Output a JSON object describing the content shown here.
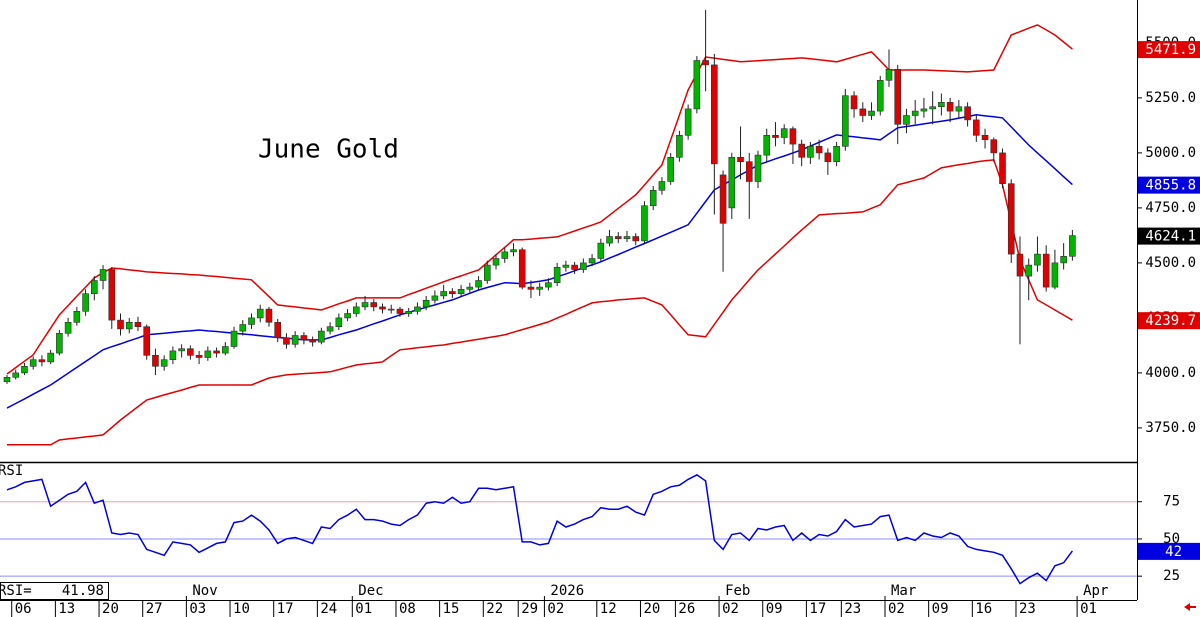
{
  "chart_data": {
    "type": "candlestick",
    "title": "June Gold",
    "up_color": "#00b400",
    "down_color": "#e00000",
    "wick_color": "#202020",
    "xlim": [
      -0.8,
      129.4
    ],
    "xticks": [
      {
        "value": 1,
        "label": "06"
      },
      {
        "value": 6,
        "label": "13"
      },
      {
        "value": 11,
        "label": "20"
      },
      {
        "value": 16,
        "label": "27"
      },
      {
        "value": 21,
        "label": "03"
      },
      {
        "value": 26,
        "label": "10"
      },
      {
        "value": 31,
        "label": "17"
      },
      {
        "value": 36,
        "label": "24"
      },
      {
        "value": 40,
        "label": "01"
      },
      {
        "value": 45,
        "label": "08"
      },
      {
        "value": 50,
        "label": "15"
      },
      {
        "value": 55,
        "label": "22"
      },
      {
        "value": 59,
        "label": "29"
      },
      {
        "value": 62,
        "label": "02"
      },
      {
        "value": 68,
        "label": "12"
      },
      {
        "value": 73,
        "label": "20"
      },
      {
        "value": 77,
        "label": "26"
      },
      {
        "value": 82,
        "label": "02"
      },
      {
        "value": 87,
        "label": "09"
      },
      {
        "value": 92,
        "label": "17"
      },
      {
        "value": 96,
        "label": "23"
      },
      {
        "value": 101,
        "label": "02"
      },
      {
        "value": 106,
        "label": "09"
      },
      {
        "value": 111,
        "label": "16"
      },
      {
        "value": 116,
        "label": "23"
      },
      {
        "value": 123,
        "label": "01"
      }
    ],
    "month_ticks": [
      {
        "value": 21,
        "label": "Nov"
      },
      {
        "value": 40,
        "label": "Dec"
      },
      {
        "value": 62,
        "label": "2026"
      },
      {
        "value": 82,
        "label": "Feb"
      },
      {
        "value": 101,
        "label": "Mar"
      },
      {
        "value": 123,
        "label": "Apr"
      }
    ],
    "ylim": [
      3595,
      5695
    ],
    "yticks": [
      {
        "value": 3750,
        "label": "3750.0"
      },
      {
        "value": 4000,
        "label": "4000.0"
      },
      {
        "value": 4250,
        "label": "4250.0"
      },
      {
        "value": 4500,
        "label": "4500.0"
      },
      {
        "value": 4750,
        "label": "4750.0"
      },
      {
        "value": 5000,
        "label": "5000.0"
      },
      {
        "value": 5250,
        "label": "5250.0"
      },
      {
        "value": 5500,
        "label": "5500.0"
      }
    ],
    "close_label_color": "#000000",
    "ohlc": [
      [
        3960,
        3990,
        3950,
        3980
      ],
      [
        3980,
        4015,
        3970,
        4000
      ],
      [
        4000,
        4045,
        3990,
        4030
      ],
      [
        4030,
        4075,
        4015,
        4060
      ],
      [
        4060,
        4080,
        4030,
        4050
      ],
      [
        4050,
        4105,
        4040,
        4090
      ],
      [
        4090,
        4195,
        4080,
        4180
      ],
      [
        4180,
        4250,
        4165,
        4230
      ],
      [
        4230,
        4300,
        4215,
        4280
      ],
      [
        4280,
        4380,
        4260,
        4360
      ],
      [
        4360,
        4440,
        4330,
        4420
      ],
      [
        4420,
        4490,
        4380,
        4470
      ],
      [
        4470,
        4480,
        4200,
        4240
      ],
      [
        4240,
        4270,
        4170,
        4200
      ],
      [
        4200,
        4250,
        4180,
        4230
      ],
      [
        4230,
        4255,
        4190,
        4210
      ],
      [
        4210,
        4220,
        4060,
        4080
      ],
      [
        4080,
        4110,
        3990,
        4030
      ],
      [
        4030,
        4080,
        4010,
        4060
      ],
      [
        4060,
        4120,
        4040,
        4100
      ],
      [
        4100,
        4130,
        4070,
        4110
      ],
      [
        4110,
        4125,
        4060,
        4080
      ],
      [
        4080,
        4100,
        4040,
        4070
      ],
      [
        4070,
        4120,
        4055,
        4100
      ],
      [
        4100,
        4115,
        4070,
        4090
      ],
      [
        4090,
        4140,
        4080,
        4120
      ],
      [
        4120,
        4210,
        4110,
        4190
      ],
      [
        4190,
        4240,
        4170,
        4220
      ],
      [
        4220,
        4270,
        4200,
        4250
      ],
      [
        4250,
        4310,
        4230,
        4290
      ],
      [
        4290,
        4300,
        4210,
        4230
      ],
      [
        4230,
        4245,
        4140,
        4160
      ],
      [
        4160,
        4180,
        4110,
        4130
      ],
      [
        4130,
        4190,
        4115,
        4170
      ],
      [
        4170,
        4185,
        4130,
        4150
      ],
      [
        4150,
        4165,
        4120,
        4140
      ],
      [
        4140,
        4205,
        4130,
        4190
      ],
      [
        4190,
        4230,
        4175,
        4210
      ],
      [
        4210,
        4270,
        4195,
        4250
      ],
      [
        4250,
        4290,
        4235,
        4270
      ],
      [
        4270,
        4320,
        4255,
        4300
      ],
      [
        4300,
        4350,
        4285,
        4320
      ],
      [
        4320,
        4335,
        4280,
        4300
      ],
      [
        4300,
        4315,
        4270,
        4290
      ],
      [
        4290,
        4310,
        4270,
        4290
      ],
      [
        4290,
        4300,
        4255,
        4270
      ],
      [
        4270,
        4295,
        4255,
        4280
      ],
      [
        4280,
        4320,
        4265,
        4300
      ],
      [
        4300,
        4350,
        4285,
        4330
      ],
      [
        4330,
        4375,
        4315,
        4350
      ],
      [
        4350,
        4400,
        4335,
        4370
      ],
      [
        4370,
        4385,
        4340,
        4360
      ],
      [
        4360,
        4400,
        4345,
        4380
      ],
      [
        4380,
        4410,
        4360,
        4390
      ],
      [
        4390,
        4440,
        4375,
        4420
      ],
      [
        4420,
        4510,
        4405,
        4490
      ],
      [
        4490,
        4540,
        4470,
        4520
      ],
      [
        4520,
        4570,
        4500,
        4550
      ],
      [
        4550,
        4590,
        4530,
        4560
      ],
      [
        4560,
        4570,
        4380,
        4390
      ],
      [
        4390,
        4420,
        4340,
        4380
      ],
      [
        4380,
        4410,
        4350,
        4390
      ],
      [
        4390,
        4430,
        4375,
        4410
      ],
      [
        4410,
        4500,
        4395,
        4480
      ],
      [
        4480,
        4510,
        4460,
        4490
      ],
      [
        4490,
        4505,
        4450,
        4470
      ],
      [
        4470,
        4520,
        4455,
        4500
      ],
      [
        4500,
        4540,
        4485,
        4520
      ],
      [
        4520,
        4610,
        4505,
        4590
      ],
      [
        4590,
        4650,
        4575,
        4620
      ],
      [
        4620,
        4640,
        4590,
        4610
      ],
      [
        4610,
        4645,
        4595,
        4620
      ],
      [
        4620,
        4635,
        4580,
        4600
      ],
      [
        4600,
        4780,
        4590,
        4760
      ],
      [
        4760,
        4850,
        4740,
        4830
      ],
      [
        4830,
        4890,
        4810,
        4870
      ],
      [
        4870,
        5000,
        4855,
        4980
      ],
      [
        4980,
        5100,
        4960,
        5080
      ],
      [
        5080,
        5220,
        5060,
        5200
      ],
      [
        5200,
        5440,
        5180,
        5420
      ],
      [
        5420,
        5650,
        5280,
        5400
      ],
      [
        5400,
        5450,
        4720,
        4950
      ],
      [
        4900,
        4920,
        4460,
        4680
      ],
      [
        4750,
        5000,
        4700,
        4980
      ],
      [
        4980,
        5120,
        4880,
        4960
      ],
      [
        4960,
        5000,
        4700,
        4870
      ],
      [
        4870,
        5010,
        4840,
        4990
      ],
      [
        4990,
        5110,
        4960,
        5080
      ],
      [
        5080,
        5140,
        5030,
        5070
      ],
      [
        5070,
        5130,
        5040,
        5110
      ],
      [
        5110,
        5120,
        4950,
        5040
      ],
      [
        5040,
        5060,
        4940,
        4980
      ],
      [
        4980,
        5050,
        4950,
        5030
      ],
      [
        5030,
        5060,
        4970,
        5000
      ],
      [
        5000,
        5020,
        4900,
        4960
      ],
      [
        4960,
        5050,
        4940,
        5030
      ],
      [
        5030,
        5290,
        5010,
        5260
      ],
      [
        5260,
        5280,
        5160,
        5200
      ],
      [
        5200,
        5230,
        5140,
        5170
      ],
      [
        5170,
        5230,
        5150,
        5190
      ],
      [
        5190,
        5350,
        5170,
        5330
      ],
      [
        5330,
        5470,
        5300,
        5380
      ],
      [
        5380,
        5400,
        5040,
        5130
      ],
      [
        5130,
        5200,
        5090,
        5170
      ],
      [
        5170,
        5240,
        5130,
        5190
      ],
      [
        5190,
        5250,
        5160,
        5200
      ],
      [
        5200,
        5280,
        5130,
        5210
      ],
      [
        5210,
        5270,
        5170,
        5230
      ],
      [
        5230,
        5250,
        5140,
        5190
      ],
      [
        5190,
        5240,
        5160,
        5210
      ],
      [
        5210,
        5230,
        5120,
        5150
      ],
      [
        5150,
        5170,
        5050,
        5080
      ],
      [
        5080,
        5110,
        5020,
        5060
      ],
      [
        5060,
        5070,
        4960,
        5000
      ],
      [
        5000,
        5020,
        4840,
        4860
      ],
      [
        4860,
        4880,
        4500,
        4540
      ],
      [
        4540,
        4620,
        4130,
        4440
      ],
      [
        4440,
        4520,
        4330,
        4490
      ],
      [
        4490,
        4620,
        4460,
        4540
      ],
      [
        4540,
        4580,
        4370,
        4390
      ],
      [
        4390,
        4560,
        4380,
        4500
      ],
      [
        4500,
        4590,
        4470,
        4530
      ],
      [
        4530,
        4650,
        4510,
        4624.1
      ]
    ],
    "bands": [
      {
        "color": "#e00000",
        "values": [
          3995,
          4024,
          4053,
          4082,
          4143,
          4203,
          4264,
          4306,
          4348,
          4390,
          4432,
          4455,
          4477,
          4473,
          4468,
          4464,
          4459,
          4457,
          4454,
          4452,
          4450,
          4447,
          4445,
          4441,
          4438,
          4434,
          4430,
          4427,
          4423,
          4385,
          4347,
          4309,
          4304,
          4300,
          4295,
          4291,
          4286,
          4300,
          4314,
          4327,
          4341,
          4341,
          4341,
          4341,
          4341,
          4341,
          4356,
          4370,
          4385,
          4399,
          4414,
          4428,
          4441,
          4455,
          4468,
          4502,
          4537,
          4571,
          4605,
          4605,
          4608,
          4612,
          4615,
          4618,
          4632,
          4645,
          4659,
          4672,
          4686,
          4717,
          4748,
          4778,
          4809,
          4854,
          4900,
          4945,
          5059,
          5172,
          5286,
          5361,
          5436,
          5431,
          5425,
          5420,
          5414,
          5417,
          5419,
          5422,
          5424,
          5427,
          5429,
          5432,
          5428,
          5423,
          5419,
          5414,
          5425,
          5437,
          5448,
          5459,
          5418,
          5377,
          5377,
          5377,
          5377,
          5377,
          5375,
          5373,
          5372,
          5370,
          5368,
          5371,
          5374,
          5377,
          5457,
          5536,
          5551,
          5567,
          5582,
          5559,
          5536,
          5504,
          5471.9
        ]
      },
      {
        "color": "#0000e0",
        "values": [
          3840,
          3861,
          3882,
          3903,
          3924,
          3945,
          3972,
          3998,
          4025,
          4052,
          4078,
          4105,
          4119,
          4132,
          4146,
          4159,
          4173,
          4177,
          4180,
          4184,
          4188,
          4191,
          4195,
          4191,
          4188,
          4184,
          4180,
          4177,
          4173,
          4169,
          4165,
          4161,
          4158,
          4154,
          4150,
          4150,
          4150,
          4161,
          4173,
          4184,
          4195,
          4209,
          4223,
          4236,
          4250,
          4264,
          4275,
          4287,
          4298,
          4309,
          4321,
          4332,
          4347,
          4362,
          4377,
          4388,
          4399,
          4410,
          4408,
          4405,
          4411,
          4417,
          4423,
          4437,
          4450,
          4464,
          4478,
          4491,
          4505,
          4522,
          4538,
          4555,
          4572,
          4588,
          4605,
          4622,
          4639,
          4656,
          4673,
          4726,
          4779,
          4832,
          4855,
          4877,
          4900,
          4922,
          4945,
          4959,
          4973,
          4986,
          5000,
          5014,
          5031,
          5048,
          5065,
          5082,
          5077,
          5073,
          5068,
          5064,
          5059,
          5087,
          5114,
          5120,
          5126,
          5132,
          5138,
          5144,
          5150,
          5158,
          5165,
          5173,
          5168,
          5164,
          5159,
          5118,
          5077,
          5036,
          5000,
          4964,
          4928,
          4892,
          4855.8
        ]
      },
      {
        "color": "#e00000",
        "values": [
          3673,
          3673,
          3673,
          3673,
          3673,
          3673,
          3695,
          3700,
          3704,
          3709,
          3713,
          3718,
          3752,
          3786,
          3816,
          3847,
          3877,
          3888,
          3900,
          3911,
          3922,
          3934,
          3945,
          3945,
          3945,
          3945,
          3945,
          3945,
          3945,
          3961,
          3977,
          3984,
          3991,
          3994,
          3997,
          3999,
          4002,
          4005,
          4015,
          4026,
          4036,
          4041,
          4045,
          4050,
          4078,
          4105,
          4109,
          4114,
          4118,
          4123,
          4127,
          4134,
          4140,
          4147,
          4153,
          4160,
          4166,
          4173,
          4185,
          4197,
          4208,
          4220,
          4232,
          4249,
          4266,
          4284,
          4301,
          4318,
          4323,
          4327,
          4332,
          4335,
          4338,
          4341,
          4325,
          4309,
          4264,
          4218,
          4173,
          4169,
          4164,
          4220,
          4276,
          4332,
          4377,
          4423,
          4468,
          4504,
          4541,
          4577,
          4614,
          4650,
          4684,
          4718,
          4721,
          4724,
          4726,
          4729,
          4732,
          4748,
          4764,
          4810,
          4855,
          4865,
          4876,
          4886,
          4909,
          4932,
          4939,
          4946,
          4952,
          4959,
          4964,
          4968,
          4855,
          4685,
          4514,
          4423,
          4332,
          4309,
          4286,
          4263,
          4239.7
        ]
      }
    ],
    "rsi": {
      "type": "line",
      "title": "RSI",
      "readout_label": "RSI=",
      "color": "#0000e0",
      "value_label": "42",
      "ylim": [
        9,
        101
      ],
      "yticks": [
        25,
        50,
        75
      ],
      "level_colors": [
        "#8c8cff",
        "#8c8cff",
        "#ff9c9c"
      ],
      "values": [
        83,
        85,
        88,
        89,
        90,
        72,
        76,
        80,
        82,
        88,
        74,
        76,
        54,
        53,
        54,
        53,
        43,
        41,
        39,
        48,
        47,
        46,
        41,
        44,
        47,
        48,
        61,
        62,
        66,
        62,
        56,
        47,
        50,
        51,
        49,
        47,
        58,
        57,
        63,
        66,
        70,
        63,
        63,
        62,
        60,
        59,
        63,
        66,
        74,
        75,
        74,
        78,
        74,
        75,
        84,
        84,
        83,
        84,
        85,
        48,
        48,
        46,
        47,
        62,
        58,
        60,
        63,
        65,
        71,
        70,
        70,
        72,
        68,
        66,
        80,
        82,
        85,
        86,
        90,
        93,
        89,
        49,
        43,
        53,
        54,
        49,
        57,
        56,
        58,
        59,
        49,
        54,
        49,
        53,
        52,
        55,
        63,
        58,
        59,
        60,
        65,
        66,
        49,
        51,
        49,
        54,
        52,
        51,
        54,
        52,
        45,
        43,
        42,
        41,
        39,
        30,
        20,
        24,
        27,
        22,
        32,
        34,
        41.98
      ]
    }
  }
}
